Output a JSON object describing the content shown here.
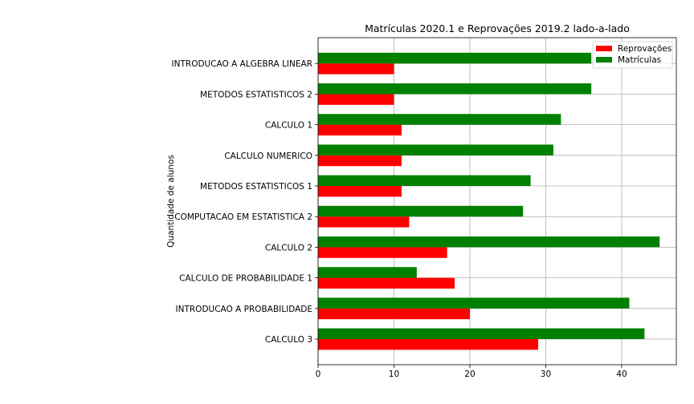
{
  "chart_data": {
    "type": "bar",
    "orientation": "horizontal",
    "title": "Matrículas 2020.1 e Reprovações 2019.2 lado-a-lado",
    "xlabel": "",
    "ylabel": "Quantidade de alunos",
    "xlim": [
      0,
      47.2
    ],
    "xticks": [
      0,
      10,
      20,
      30,
      40
    ],
    "grid": true,
    "legend_position": "top-right",
    "categories": [
      "CALCULO 3",
      "INTRODUCAO A PROBABILIDADE",
      "CALCULO DE PROBABILIDADE 1",
      "CALCULO 2",
      "COMPUTACAO EM ESTATISTICA 2",
      "METODOS ESTATISTICOS 1",
      "CALCULO NUMERICO",
      "CALCULO 1",
      "METODOS ESTATISTICOS 2",
      "INTRODUCAO A ALGEBRA LINEAR"
    ],
    "series": [
      {
        "name": "Reprovações",
        "color": "#ff0000",
        "values": [
          29,
          20,
          18,
          17,
          12,
          11,
          11,
          11,
          10,
          10
        ]
      },
      {
        "name": "Matrículas",
        "color": "#008000",
        "values": [
          43,
          41,
          13,
          45,
          27,
          28,
          31,
          32,
          36,
          36
        ]
      }
    ]
  }
}
